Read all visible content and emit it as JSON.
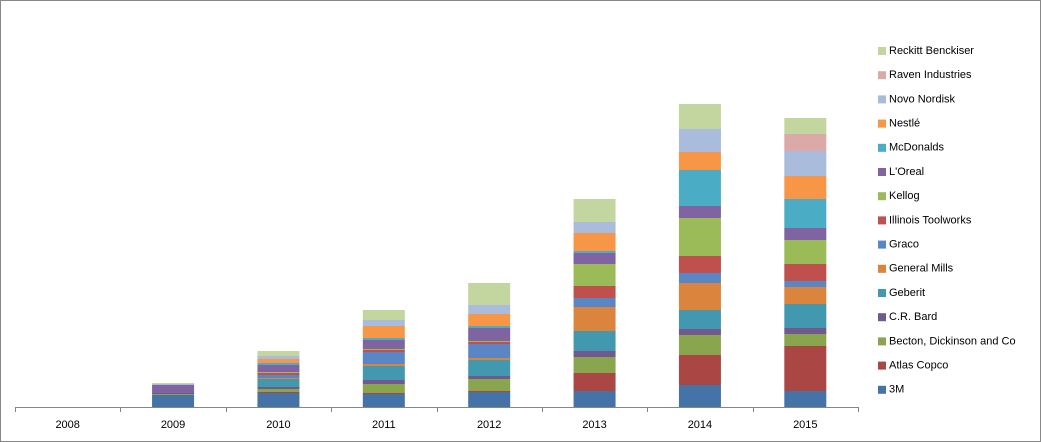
{
  "chart_data": {
    "type": "stacked_bar",
    "categories": [
      "2008",
      "2009",
      "2010",
      "2011",
      "2012",
      "2013",
      "2014",
      "2015"
    ],
    "ylim": [
      0,
      400
    ],
    "legend": "right",
    "series": [
      {
        "name": "3M",
        "color": "#4572a7",
        "values": [
          0,
          12,
          14,
          13,
          15,
          16,
          22,
          16
        ]
      },
      {
        "name": "Atlas Copco",
        "color": "#aa4643",
        "values": [
          0,
          0,
          1,
          1,
          1,
          18,
          30,
          45
        ]
      },
      {
        "name": "Becton, Dickinson and Co",
        "color": "#89a54e",
        "values": [
          0,
          1,
          3,
          9,
          12,
          16,
          20,
          12
        ]
      },
      {
        "name": "C.R. Bard",
        "color": "#71588f",
        "values": [
          0,
          1,
          2,
          4,
          3,
          6,
          6,
          6
        ]
      },
      {
        "name": "Geberit",
        "color": "#4198af",
        "values": [
          0,
          0,
          8,
          14,
          16,
          20,
          19,
          24
        ]
      },
      {
        "name": "General Mills",
        "color": "#db843d",
        "values": [
          0,
          0,
          1,
          2,
          2,
          24,
          27,
          17
        ]
      },
      {
        "name": "Graco",
        "color": "#5b86c5",
        "values": [
          0,
          0,
          3,
          12,
          14,
          9,
          10,
          6
        ]
      },
      {
        "name": "Illinois Toolworks",
        "color": "#c0504d",
        "values": [
          0,
          0,
          2,
          2,
          2,
          12,
          17,
          17
        ]
      },
      {
        "name": "Kellog",
        "color": "#9bbb59",
        "values": [
          0,
          0,
          1,
          1,
          1,
          22,
          38,
          24
        ]
      },
      {
        "name": "L'Oreal",
        "color": "#8064a2",
        "values": [
          0,
          8,
          7,
          9,
          13,
          11,
          12,
          12
        ]
      },
      {
        "name": "McDonalds",
        "color": "#4bacc6",
        "values": [
          0,
          0,
          2,
          2,
          2,
          2,
          36,
          29
        ]
      },
      {
        "name": "Nestlé",
        "color": "#f79646",
        "values": [
          0,
          0,
          4,
          12,
          12,
          18,
          18,
          23
        ]
      },
      {
        "name": "Novo Nordisk",
        "color": "#a9bcdc",
        "values": [
          0,
          1,
          3,
          6,
          9,
          11,
          23,
          25
        ]
      },
      {
        "name": "Raven Industries",
        "color": "#dba9a8",
        "values": [
          0,
          0,
          0,
          0,
          0,
          0,
          0,
          17
        ]
      },
      {
        "name": "Reckitt Benckiser",
        "color": "#c4d6a0",
        "values": [
          0,
          1,
          5,
          10,
          22,
          23,
          25,
          16
        ]
      }
    ]
  }
}
